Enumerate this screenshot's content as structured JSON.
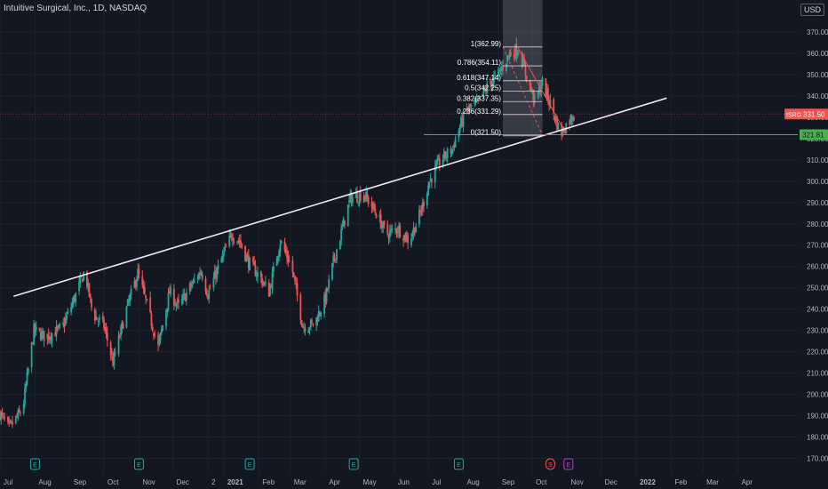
{
  "header": {
    "title": "Intuitive Surgical, Inc., 1D, NASDAQ"
  },
  "currency": "USD",
  "colors": {
    "background": "#131722",
    "up": "#26a69a",
    "down": "#ef5350",
    "trendline": "#f3e5f5",
    "support": "#4caf50",
    "grid": "#1e222d",
    "fib": "#d1d4dc"
  },
  "chart_data": {
    "type": "candlestick",
    "title": "Intuitive Surgical, Inc., 1D, NASDAQ",
    "ylim": [
      165,
      375
    ],
    "y_ticks": [
      170,
      180,
      190,
      200,
      210,
      220,
      230,
      240,
      250,
      260,
      270,
      280,
      290,
      300,
      310,
      320,
      330,
      340,
      350,
      360,
      370
    ],
    "x_tick_labels": [
      "Jul",
      "Aug",
      "Sep",
      "Oct",
      "Nov",
      "Dec",
      "2",
      "2021",
      "Feb",
      "Mar",
      "Apr",
      "May",
      "Jun",
      "Jul",
      "Aug",
      "Sep",
      "Oct",
      "Nov",
      "Dec",
      "2022",
      "Feb",
      "Mar",
      "Apr"
    ],
    "x_tick_days": [
      0,
      31,
      62,
      92,
      123,
      153,
      184,
      198,
      229,
      257,
      288,
      318,
      349,
      379,
      410,
      441,
      471,
      502,
      532,
      563,
      594,
      622,
      653
    ],
    "x_range_days": [
      0,
      706
    ],
    "price_path": [
      [
        0,
        191
      ],
      [
        8,
        184
      ],
      [
        20,
        193
      ],
      [
        30,
        230
      ],
      [
        40,
        227
      ],
      [
        55,
        231
      ],
      [
        68,
        248
      ],
      [
        75,
        258
      ],
      [
        82,
        238
      ],
      [
        92,
        232
      ],
      [
        100,
        215
      ],
      [
        112,
        240
      ],
      [
        122,
        257
      ],
      [
        130,
        242
      ],
      [
        140,
        222
      ],
      [
        150,
        248
      ],
      [
        158,
        241
      ],
      [
        168,
        250
      ],
      [
        178,
        258
      ],
      [
        184,
        247
      ],
      [
        195,
        262
      ],
      [
        205,
        275
      ],
      [
        212,
        272
      ],
      [
        220,
        262
      ],
      [
        230,
        255
      ],
      [
        238,
        248
      ],
      [
        248,
        272
      ],
      [
        258,
        260
      ],
      [
        268,
        232
      ],
      [
        278,
        233
      ],
      [
        288,
        245
      ],
      [
        295,
        262
      ],
      [
        310,
        292
      ],
      [
        322,
        294
      ],
      [
        333,
        285
      ],
      [
        342,
        275
      ],
      [
        352,
        278
      ],
      [
        362,
        272
      ],
      [
        372,
        285
      ],
      [
        380,
        300
      ],
      [
        390,
        310
      ],
      [
        400,
        315
      ],
      [
        412,
        333
      ],
      [
        422,
        336
      ],
      [
        432,
        345
      ],
      [
        441,
        350
      ],
      [
        451,
        360
      ],
      [
        459,
        362
      ],
      [
        466,
        349
      ],
      [
        473,
        338
      ],
      [
        480,
        346
      ],
      [
        488,
        335
      ],
      [
        496,
        322
      ],
      [
        503,
        328
      ],
      [
        508,
        331.5
      ]
    ],
    "trendline": {
      "from": [
        12,
        246
      ],
      "to": [
        590,
        339
      ]
    },
    "support": {
      "value": 321.81,
      "label": "321.81",
      "from_day": 375
    },
    "last_price": {
      "label": "ISRG",
      "value": 331.5,
      "text": "331.50"
    },
    "fib_shade": {
      "from_day": 445,
      "to_day": 480
    },
    "fibonacci": [
      {
        "label": "1(362.99)",
        "value": 362.99
      },
      {
        "label": "0.786(354.11)",
        "value": 354.11
      },
      {
        "label": "0.618(347.14)",
        "value": 347.14
      },
      {
        "label": "0.5(342.25)",
        "value": 342.25
      },
      {
        "label": "0.382(337.35)",
        "value": 337.35
      },
      {
        "label": "0.236(331.29)",
        "value": 331.29
      },
      {
        "label": "0(321.50)",
        "value": 321.5
      }
    ],
    "fib_x": {
      "from_day": 445,
      "to_day": 480
    },
    "events": [
      {
        "day": 31,
        "type": "E"
      },
      {
        "day": 123,
        "type": "E"
      },
      {
        "day": 221,
        "type": "E"
      },
      {
        "day": 313,
        "type": "E"
      },
      {
        "day": 406,
        "type": "E"
      },
      {
        "day": 487,
        "type": "S"
      },
      {
        "day": 503,
        "type": "E"
      }
    ]
  }
}
